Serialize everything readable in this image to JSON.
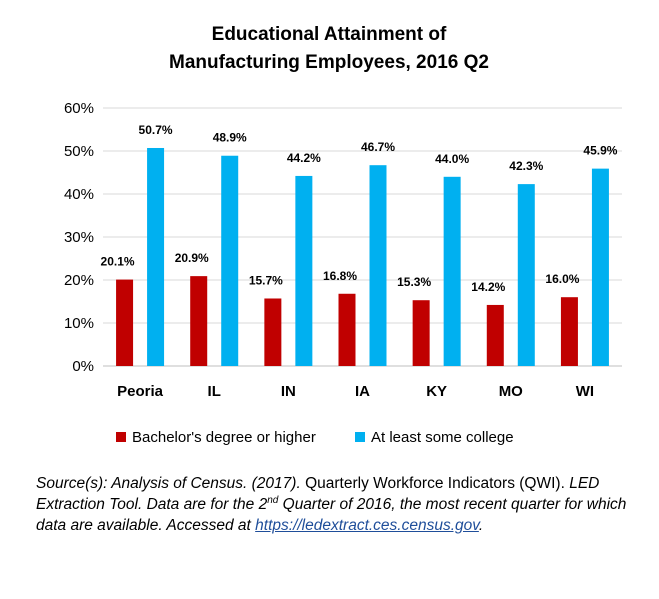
{
  "chart_data": {
    "type": "bar",
    "title_lines": [
      "Educational Attainment of",
      "Manufacturing Employees, 2016 Q2"
    ],
    "categories": [
      "Peoria",
      "IL",
      "IN",
      "IA",
      "KY",
      "MO",
      "WI"
    ],
    "series": [
      {
        "name": "Bachelor's degree or higher",
        "color": "#c00000",
        "values": [
          20.1,
          20.9,
          15.7,
          16.8,
          15.3,
          14.2,
          16.0
        ],
        "labels": [
          "20.1%",
          "20.9%",
          "15.7%",
          "16.8%",
          "15.3%",
          "14.2%",
          "16.0%"
        ]
      },
      {
        "name": "At least some college",
        "color": "#00b0f0",
        "values": [
          50.7,
          48.9,
          44.2,
          46.7,
          44.0,
          42.3,
          45.9
        ],
        "labels": [
          "50.7%",
          "48.9%",
          "44.2%",
          "46.7%",
          "44.0%",
          "42.3%",
          "45.9%"
        ]
      }
    ],
    "ylim": [
      0,
      60
    ],
    "yticks": [
      0,
      10,
      20,
      30,
      40,
      50,
      60
    ],
    "ytick_labels": [
      "0%",
      "10%",
      "20%",
      "30%",
      "40%",
      "50%",
      "60%"
    ],
    "grid": true,
    "legend_position": "bottom"
  },
  "source": {
    "part1": "Source(s): Analysis of Census. (2017).",
    "part2": " Quarterly Workforce Indicators (QWI).",
    "part3": " LED Extraction Tool. Data are for the 2",
    "sup": "nd",
    "part4": " Quarter of 2016, the most recent quarter for which data are available. Accessed at ",
    "link": "https://ledextract.ces.census.gov",
    "end": "."
  }
}
